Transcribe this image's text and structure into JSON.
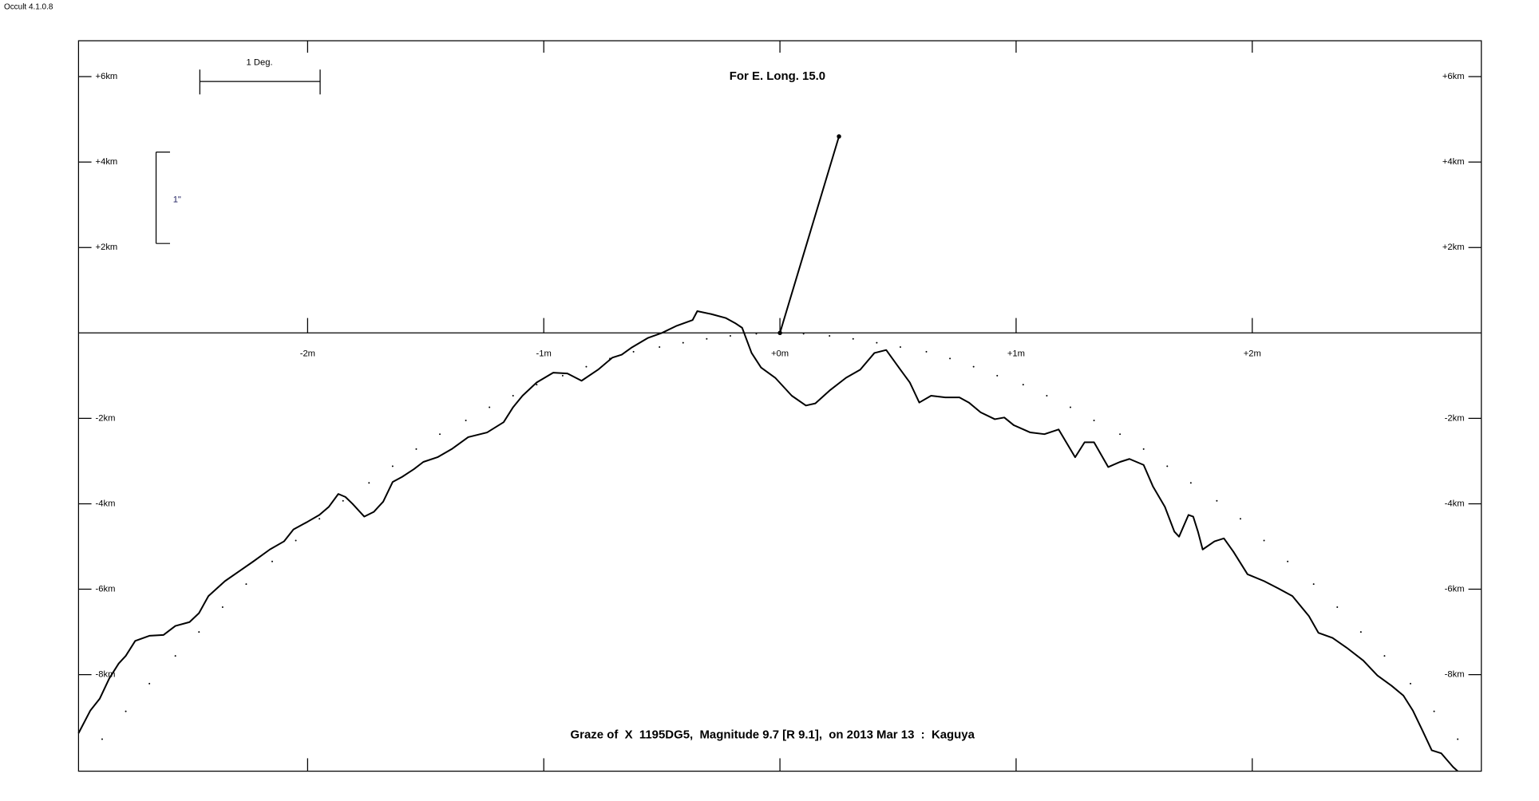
{
  "window": {
    "version_label": "Occult 4.1.0.8"
  },
  "chart_data": {
    "type": "line",
    "title": "Graze of  X  1195DG5,  Magnitude 9.7 [R 9.1],  on 2013 Mar 13  :  Kaguya",
    "subtitle": "For E. Long. 15.0",
    "annotations": [
      "1 Deg.",
      "1\""
    ],
    "xlim": [
      -2.97,
      2.97
    ],
    "ylim": [
      -10.26,
      6.84
    ],
    "xticks": [
      {
        "value": -2,
        "label": "-2m"
      },
      {
        "value": -1,
        "label": "-1m"
      },
      {
        "value": 0,
        "label": "+0m"
      },
      {
        "value": 1,
        "label": "+1m"
      },
      {
        "value": 2,
        "label": "+2m"
      }
    ],
    "yticks": [
      {
        "value": -8,
        "label": "-8km"
      },
      {
        "value": -6,
        "label": "-6km"
      },
      {
        "value": -4,
        "label": "-4km"
      },
      {
        "value": -2,
        "label": "-2km"
      },
      {
        "value": 2,
        "label": "+2km"
      },
      {
        "value": 4,
        "label": "+4km"
      },
      {
        "value": 6,
        "label": "+6km"
      }
    ],
    "series": [
      {
        "style": "line",
        "color": "#000000",
        "x": [
          -2.97,
          -2.92,
          -2.88,
          -2.84,
          -2.8,
          -2.77,
          -2.73,
          -2.67,
          -2.61,
          -2.56,
          -2.5,
          -2.46,
          -2.42,
          -2.35,
          -2.29,
          -2.23,
          -2.16,
          -2.1,
          -2.06,
          -2.0,
          -1.95,
          -1.91,
          -1.87,
          -1.84,
          -1.81,
          -1.76,
          -1.72,
          -1.68,
          -1.64,
          -1.6,
          -1.55,
          -1.51,
          -1.45,
          -1.39,
          -1.32,
          -1.24,
          -1.17,
          -1.13,
          -1.09,
          -1.03,
          -0.96,
          -0.9,
          -0.84,
          -0.77,
          -0.71,
          -0.67,
          -0.63,
          -0.56,
          -0.5,
          -0.44,
          -0.37,
          -0.35,
          -0.29,
          -0.23,
          -0.19,
          -0.16,
          -0.12,
          -0.08,
          -0.02,
          0.05,
          0.11,
          0.15,
          0.21,
          0.28,
          0.34,
          0.4,
          0.45,
          0.51,
          0.55,
          0.59,
          0.64,
          0.7,
          0.76,
          0.8,
          0.85,
          0.91,
          0.95,
          0.99,
          1.06,
          1.12,
          1.18,
          1.25,
          1.29,
          1.33,
          1.39,
          1.44,
          1.48,
          1.54,
          1.58,
          1.63,
          1.67,
          1.69,
          1.73,
          1.75,
          1.77,
          1.79,
          1.84,
          1.88,
          1.92,
          1.98,
          2.05,
          2.11,
          2.17,
          2.24,
          2.28,
          2.34,
          2.4,
          2.47,
          2.53,
          2.59,
          2.64,
          2.68,
          2.72,
          2.76,
          2.8,
          2.85,
          2.87
        ],
        "values": [
          -9.37,
          -8.84,
          -8.56,
          -8.09,
          -7.74,
          -7.56,
          -7.21,
          -7.09,
          -7.07,
          -6.86,
          -6.77,
          -6.56,
          -6.16,
          -5.81,
          -5.58,
          -5.35,
          -5.07,
          -4.88,
          -4.6,
          -4.42,
          -4.26,
          -4.07,
          -3.77,
          -3.84,
          -4.0,
          -4.3,
          -4.19,
          -3.95,
          -3.49,
          -3.37,
          -3.19,
          -3.02,
          -2.91,
          -2.72,
          -2.44,
          -2.33,
          -2.09,
          -1.74,
          -1.47,
          -1.16,
          -0.93,
          -0.95,
          -1.12,
          -0.86,
          -0.58,
          -0.51,
          -0.35,
          -0.12,
          0.0,
          0.16,
          0.3,
          0.51,
          0.44,
          0.35,
          0.23,
          0.12,
          -0.47,
          -0.81,
          -1.05,
          -1.47,
          -1.7,
          -1.65,
          -1.35,
          -1.05,
          -0.86,
          -0.47,
          -0.4,
          -0.86,
          -1.16,
          -1.63,
          -1.47,
          -1.51,
          -1.51,
          -1.63,
          -1.86,
          -2.02,
          -1.98,
          -2.16,
          -2.33,
          -2.37,
          -2.26,
          -2.91,
          -2.56,
          -2.56,
          -3.14,
          -3.02,
          -2.95,
          -3.09,
          -3.6,
          -4.07,
          -4.65,
          -4.77,
          -4.26,
          -4.3,
          -4.65,
          -5.07,
          -4.88,
          -4.81,
          -5.12,
          -5.65,
          -5.81,
          -5.98,
          -6.16,
          -6.63,
          -7.02,
          -7.14,
          -7.37,
          -7.67,
          -8.02,
          -8.26,
          -8.49,
          -8.84,
          -9.3,
          -9.77,
          -9.84,
          -10.16,
          -10.26
        ]
      },
      {
        "style": "dots",
        "color": "#000000",
        "x": [
          -2.87,
          -2.77,
          -2.67,
          -2.56,
          -2.46,
          -2.36,
          -2.26,
          -2.15,
          -2.05,
          -1.95,
          -1.85,
          -1.74,
          -1.64,
          -1.54,
          -1.44,
          -1.33,
          -1.23,
          -1.13,
          -1.03,
          -0.92,
          -0.82,
          -0.72,
          -0.62,
          -0.51,
          -0.41,
          -0.31,
          -0.21,
          -0.1,
          0,
          0.1,
          0.21,
          0.31,
          0.41,
          0.51,
          0.62,
          0.72,
          0.82,
          0.92,
          1.03,
          1.13,
          1.23,
          1.33,
          1.44,
          1.54,
          1.64,
          1.74,
          1.85,
          1.95,
          2.05,
          2.15,
          2.26,
          2.36,
          2.46,
          2.56,
          2.67,
          2.77,
          2.87
        ],
        "values": [
          -9.51,
          -8.86,
          -8.21,
          -7.56,
          -7.0,
          -6.42,
          -5.88,
          -5.35,
          -4.86,
          -4.35,
          -3.93,
          -3.51,
          -3.12,
          -2.72,
          -2.37,
          -2.05,
          -1.74,
          -1.47,
          -1.21,
          -1.0,
          -0.79,
          -0.6,
          -0.44,
          -0.33,
          -0.23,
          -0.14,
          -0.07,
          -0.02,
          0,
          -0.02,
          -0.07,
          -0.14,
          -0.23,
          -0.33,
          -0.44,
          -0.6,
          -0.79,
          -1.0,
          -1.21,
          -1.47,
          -1.74,
          -2.05,
          -2.37,
          -2.72,
          -3.12,
          -3.51,
          -3.93,
          -4.35,
          -4.86,
          -5.35,
          -5.88,
          -6.42,
          -7.0,
          -7.56,
          -8.21,
          -8.86,
          -9.51
        ]
      }
    ],
    "pointer": {
      "x": [
        0,
        0.25
      ],
      "values": [
        0,
        4.6
      ]
    }
  }
}
